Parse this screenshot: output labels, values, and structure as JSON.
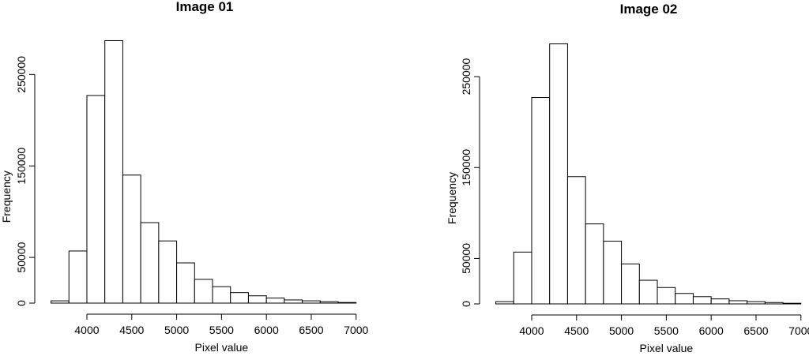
{
  "chart_data": [
    {
      "type": "histogram",
      "title": "Image 01",
      "xlabel": "Pixel value",
      "ylabel": "Frequency",
      "xticks": [
        4000,
        4500,
        5000,
        5500,
        6000,
        6500,
        7000
      ],
      "yticks": [
        0,
        50000,
        150000,
        250000
      ],
      "xlim": [
        3560,
        7090
      ],
      "ylim": [
        0,
        290000
      ],
      "bin_width": 200,
      "bin_edges": [
        3600,
        3800,
        4000,
        4200,
        4400,
        4600,
        4800,
        5000,
        5200,
        5400,
        5600,
        5800,
        6000,
        6200,
        6400,
        6600,
        6800,
        7000
      ],
      "values": [
        2500,
        57000,
        227000,
        287000,
        140000,
        88000,
        68000,
        44000,
        26000,
        18000,
        11500,
        8000,
        5500,
        3500,
        2500,
        1500,
        700
      ]
    },
    {
      "type": "histogram",
      "title": "Image 02",
      "xlabel": "Pixel value",
      "ylabel": "Frequency",
      "xticks": [
        4000,
        4500,
        5000,
        5500,
        6000,
        6500,
        7000
      ],
      "yticks": [
        0,
        50000,
        150000,
        250000
      ],
      "xlim": [
        3560,
        7090
      ],
      "ylim": [
        0,
        290000
      ],
      "bin_width": 200,
      "bin_edges": [
        3600,
        3800,
        4000,
        4200,
        4400,
        4600,
        4800,
        5000,
        5200,
        5400,
        5600,
        5800,
        6000,
        6200,
        6400,
        6600,
        6800,
        7000
      ],
      "values": [
        2500,
        57000,
        227000,
        286000,
        140000,
        88000,
        69000,
        44000,
        26000,
        18000,
        11500,
        8000,
        5500,
        3500,
        2500,
        1500,
        700
      ]
    }
  ]
}
